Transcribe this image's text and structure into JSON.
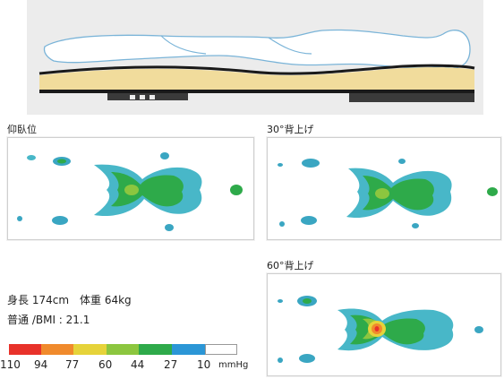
{
  "panels": [
    {
      "id": "supine",
      "label": "仰臥位"
    },
    {
      "id": "incline30",
      "label": "30°背上げ"
    },
    {
      "id": "incline60",
      "label": "60°背上げ"
    }
  ],
  "subject": {
    "line1": "身長 174cm　体重 64kg",
    "line2": "普通 /BMI : 21.1"
  },
  "scale": {
    "unit": "mmHg",
    "ticks": [
      "110",
      "94",
      "77",
      "60",
      "44",
      "27",
      "10"
    ],
    "colors": [
      "#e8322a",
      "#f08a2c",
      "#e6d33a",
      "#8cc63f",
      "#2eaa4a",
      "#2b96d6",
      "#ffffff"
    ]
  }
}
